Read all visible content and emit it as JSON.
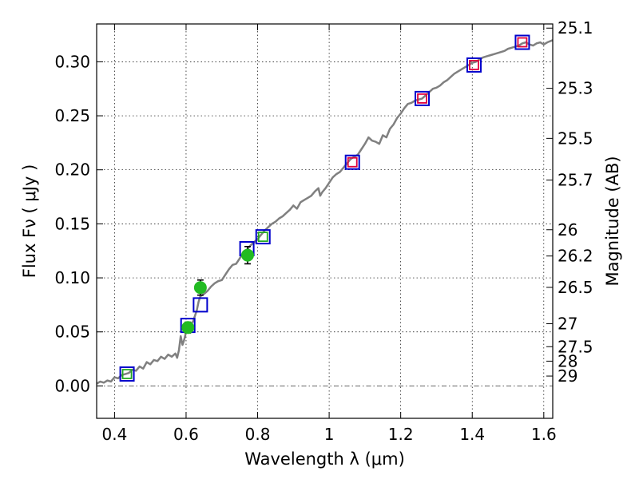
{
  "chart_data": {
    "type": "scatter",
    "title": "",
    "xlabel": "Wavelength  λ (μm)",
    "ylabel": "Flux  Fν ( μJy )",
    "ylabel_right": "Magnitude (AB)",
    "xlim": [
      0.35,
      1.625
    ],
    "ylim": [
      -0.03,
      0.335
    ],
    "grid": true,
    "x_ticks": [
      {
        "value": 0.4,
        "label": "0.4"
      },
      {
        "value": 0.6,
        "label": "0.6"
      },
      {
        "value": 0.8,
        "label": "0.8"
      },
      {
        "value": 1.0,
        "label": "1"
      },
      {
        "value": 1.2,
        "label": "1.2"
      },
      {
        "value": 1.4,
        "label": "1.4"
      },
      {
        "value": 1.6,
        "label": "1.6"
      }
    ],
    "y_ticks": [
      {
        "value": 0.0,
        "label": "0.00"
      },
      {
        "value": 0.05,
        "label": "0.05"
      },
      {
        "value": 0.1,
        "label": "0.10"
      },
      {
        "value": 0.15,
        "label": "0.15"
      },
      {
        "value": 0.2,
        "label": "0.20"
      },
      {
        "value": 0.25,
        "label": "0.25"
      },
      {
        "value": 0.3,
        "label": "0.30"
      }
    ],
    "right_ticks": [
      {
        "value": 25.1,
        "label": "25.1"
      },
      {
        "value": 25.3,
        "label": "25.3"
      },
      {
        "value": 25.5,
        "label": "25.5"
      },
      {
        "value": 25.7,
        "label": "25.7"
      },
      {
        "value": 26.0,
        "label": "26"
      },
      {
        "value": 26.2,
        "label": "26.2"
      },
      {
        "value": 26.5,
        "label": "26.5"
      },
      {
        "value": 27.0,
        "label": "27"
      },
      {
        "value": 27.5,
        "label": "27.5"
      },
      {
        "value": 28.0,
        "label": "28"
      },
      {
        "value": 29.0,
        "label": "29"
      }
    ],
    "series": [
      {
        "name": "model SED",
        "kind": "line",
        "color": "#808080",
        "points": [
          [
            0.35,
            0.002
          ],
          [
            0.36,
            0.004
          ],
          [
            0.37,
            0.003
          ],
          [
            0.38,
            0.005
          ],
          [
            0.39,
            0.004
          ],
          [
            0.4,
            0.008
          ],
          [
            0.41,
            0.007
          ],
          [
            0.42,
            0.01
          ],
          [
            0.43,
            0.011
          ],
          [
            0.44,
            0.012
          ],
          [
            0.45,
            0.015
          ],
          [
            0.46,
            0.014
          ],
          [
            0.47,
            0.018
          ],
          [
            0.48,
            0.016
          ],
          [
            0.49,
            0.022
          ],
          [
            0.5,
            0.02
          ],
          [
            0.51,
            0.024
          ],
          [
            0.52,
            0.023
          ],
          [
            0.53,
            0.027
          ],
          [
            0.54,
            0.025
          ],
          [
            0.55,
            0.029
          ],
          [
            0.56,
            0.027
          ],
          [
            0.57,
            0.03
          ],
          [
            0.575,
            0.026
          ],
          [
            0.58,
            0.033
          ],
          [
            0.585,
            0.046
          ],
          [
            0.59,
            0.038
          ],
          [
            0.595,
            0.043
          ],
          [
            0.6,
            0.05
          ],
          [
            0.61,
            0.055
          ],
          [
            0.62,
            0.06
          ],
          [
            0.63,
            0.07
          ],
          [
            0.635,
            0.078
          ],
          [
            0.64,
            0.083
          ],
          [
            0.65,
            0.085
          ],
          [
            0.66,
            0.088
          ],
          [
            0.67,
            0.092
          ],
          [
            0.68,
            0.095
          ],
          [
            0.69,
            0.097
          ],
          [
            0.7,
            0.098
          ],
          [
            0.71,
            0.103
          ],
          [
            0.72,
            0.108
          ],
          [
            0.73,
            0.112
          ],
          [
            0.74,
            0.113
          ],
          [
            0.75,
            0.118
          ],
          [
            0.76,
            0.124
          ],
          [
            0.77,
            0.126
          ],
          [
            0.78,
            0.13
          ],
          [
            0.79,
            0.133
          ],
          [
            0.8,
            0.136
          ],
          [
            0.81,
            0.14
          ],
          [
            0.82,
            0.144
          ],
          [
            0.83,
            0.147
          ],
          [
            0.84,
            0.15
          ],
          [
            0.85,
            0.152
          ],
          [
            0.86,
            0.155
          ],
          [
            0.87,
            0.157
          ],
          [
            0.88,
            0.16
          ],
          [
            0.89,
            0.163
          ],
          [
            0.9,
            0.167
          ],
          [
            0.91,
            0.164
          ],
          [
            0.92,
            0.17
          ],
          [
            0.93,
            0.172
          ],
          [
            0.94,
            0.174
          ],
          [
            0.95,
            0.176
          ],
          [
            0.96,
            0.18
          ],
          [
            0.97,
            0.183
          ],
          [
            0.975,
            0.176
          ],
          [
            0.98,
            0.179
          ],
          [
            0.99,
            0.183
          ],
          [
            1.0,
            0.188
          ],
          [
            1.01,
            0.193
          ],
          [
            1.02,
            0.196
          ],
          [
            1.03,
            0.198
          ],
          [
            1.04,
            0.202
          ],
          [
            1.05,
            0.206
          ],
          [
            1.06,
            0.21
          ],
          [
            1.07,
            0.212
          ],
          [
            1.08,
            0.214
          ],
          [
            1.09,
            0.219
          ],
          [
            1.1,
            0.224
          ],
          [
            1.11,
            0.23
          ],
          [
            1.12,
            0.227
          ],
          [
            1.13,
            0.226
          ],
          [
            1.14,
            0.224
          ],
          [
            1.15,
            0.232
          ],
          [
            1.16,
            0.23
          ],
          [
            1.17,
            0.238
          ],
          [
            1.18,
            0.242
          ],
          [
            1.19,
            0.248
          ],
          [
            1.2,
            0.252
          ],
          [
            1.21,
            0.257
          ],
          [
            1.22,
            0.261
          ],
          [
            1.23,
            0.262
          ],
          [
            1.24,
            0.264
          ],
          [
            1.25,
            0.265
          ],
          [
            1.26,
            0.266
          ],
          [
            1.27,
            0.269
          ],
          [
            1.28,
            0.272
          ],
          [
            1.29,
            0.275
          ],
          [
            1.3,
            0.276
          ],
          [
            1.31,
            0.278
          ],
          [
            1.32,
            0.281
          ],
          [
            1.33,
            0.283
          ],
          [
            1.34,
            0.286
          ],
          [
            1.35,
            0.289
          ],
          [
            1.36,
            0.291
          ],
          [
            1.37,
            0.293
          ],
          [
            1.38,
            0.295
          ],
          [
            1.39,
            0.297
          ],
          [
            1.4,
            0.299
          ],
          [
            1.41,
            0.3
          ],
          [
            1.42,
            0.302
          ],
          [
            1.43,
            0.304
          ],
          [
            1.44,
            0.305
          ],
          [
            1.45,
            0.306
          ],
          [
            1.46,
            0.307
          ],
          [
            1.47,
            0.308
          ],
          [
            1.48,
            0.309
          ],
          [
            1.49,
            0.31
          ],
          [
            1.5,
            0.312
          ],
          [
            1.51,
            0.313
          ],
          [
            1.52,
            0.314
          ],
          [
            1.53,
            0.315
          ],
          [
            1.54,
            0.317
          ],
          [
            1.55,
            0.318
          ],
          [
            1.56,
            0.316
          ],
          [
            1.57,
            0.315
          ],
          [
            1.58,
            0.317
          ],
          [
            1.59,
            0.318
          ],
          [
            1.6,
            0.316
          ],
          [
            1.61,
            0.318
          ],
          [
            1.625,
            0.32
          ]
        ]
      },
      {
        "name": "synthetic photometry (blue squares)",
        "kind": "square",
        "color": "#0000cc",
        "points": [
          [
            0.435,
            0.011
          ],
          [
            0.605,
            0.056
          ],
          [
            0.64,
            0.075
          ],
          [
            0.77,
            0.127
          ],
          [
            0.815,
            0.138
          ],
          [
            1.065,
            0.207
          ],
          [
            1.26,
            0.266
          ],
          [
            1.405,
            0.297
          ],
          [
            1.54,
            0.318
          ]
        ]
      },
      {
        "name": "synthetic photometry (red squares)",
        "kind": "square_small",
        "color": "#e0003c",
        "points": [
          [
            1.065,
            0.207
          ],
          [
            1.26,
            0.266
          ],
          [
            1.405,
            0.297
          ],
          [
            1.54,
            0.318
          ]
        ]
      },
      {
        "name": "synthetic photometry (green squares)",
        "kind": "square_small",
        "color": "#22aa22",
        "points": [
          [
            0.435,
            0.011
          ],
          [
            0.815,
            0.138
          ]
        ]
      },
      {
        "name": "observed photometry",
        "kind": "circle",
        "color": "#22bb22",
        "points": [
          [
            0.605,
            0.054,
            0.005
          ],
          [
            0.64,
            0.091,
            0.007
          ],
          [
            0.772,
            0.121,
            0.008
          ]
        ]
      }
    ]
  }
}
